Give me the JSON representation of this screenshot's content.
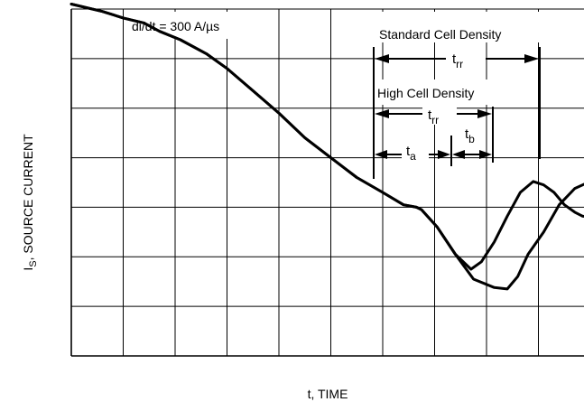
{
  "chart_data": {
    "type": "line",
    "xlabel": "t, TIME",
    "ylabel_main": "I",
    "ylabel_sub": "S",
    "ylabel_rest": ", SOURCE CURRENT",
    "grid": true,
    "grid_columns": 10,
    "grid_rows": 7,
    "annotations": {
      "didt": "di/dt = 300 A/µs",
      "standard_label": "Standard Cell Density",
      "high_label": "High Cell Density",
      "trr_main": "t",
      "trr_sub": "rr",
      "ta_main": "t",
      "ta_sub": "a",
      "tb_main": "t",
      "tb_sub": "b"
    },
    "series": [
      {
        "points": [
          [
            0,
            7.1
          ],
          [
            0.6,
            6.95
          ],
          [
            1.0,
            6.82
          ],
          [
            1.4,
            6.72
          ],
          [
            1.7,
            6.55
          ],
          [
            2.1,
            6.38
          ],
          [
            2.6,
            6.1
          ],
          [
            3.0,
            5.8
          ],
          [
            3.5,
            5.35
          ],
          [
            4.0,
            4.9
          ],
          [
            4.5,
            4.4
          ],
          [
            5.0,
            4.0
          ],
          [
            5.5,
            3.6
          ],
          [
            6.0,
            3.3
          ],
          [
            6.4,
            3.05
          ],
          [
            6.65,
            3.0
          ],
          [
            6.75,
            2.95
          ],
          [
            7.05,
            2.6
          ],
          [
            7.4,
            2.05
          ],
          [
            7.75,
            1.55
          ],
          [
            8.15,
            1.38
          ],
          [
            8.4,
            1.35
          ],
          [
            8.6,
            1.6
          ],
          [
            8.8,
            2.05
          ],
          [
            9.1,
            2.5
          ],
          [
            9.4,
            3.05
          ],
          [
            9.7,
            3.38
          ],
          [
            10.0,
            3.52
          ]
        ]
      },
      {
        "points": [
          [
            0,
            7.1
          ],
          [
            0.6,
            6.95
          ],
          [
            1.0,
            6.82
          ],
          [
            1.4,
            6.72
          ],
          [
            1.7,
            6.55
          ],
          [
            2.1,
            6.38
          ],
          [
            2.6,
            6.1
          ],
          [
            3.0,
            5.8
          ],
          [
            3.5,
            5.35
          ],
          [
            4.0,
            4.9
          ],
          [
            4.5,
            4.4
          ],
          [
            5.0,
            4.0
          ],
          [
            5.5,
            3.6
          ],
          [
            6.0,
            3.3
          ],
          [
            6.4,
            3.05
          ],
          [
            6.65,
            3.0
          ],
          [
            6.75,
            2.95
          ],
          [
            7.05,
            2.6
          ],
          [
            7.4,
            2.05
          ],
          [
            7.7,
            1.75
          ],
          [
            7.9,
            1.9
          ],
          [
            8.15,
            2.3
          ],
          [
            8.4,
            2.82
          ],
          [
            8.65,
            3.3
          ],
          [
            8.9,
            3.52
          ],
          [
            9.1,
            3.45
          ],
          [
            9.3,
            3.3
          ],
          [
            9.5,
            3.05
          ],
          [
            9.7,
            2.9
          ],
          [
            9.85,
            2.82
          ],
          [
            10.0,
            2.8
          ]
        ]
      }
    ]
  }
}
